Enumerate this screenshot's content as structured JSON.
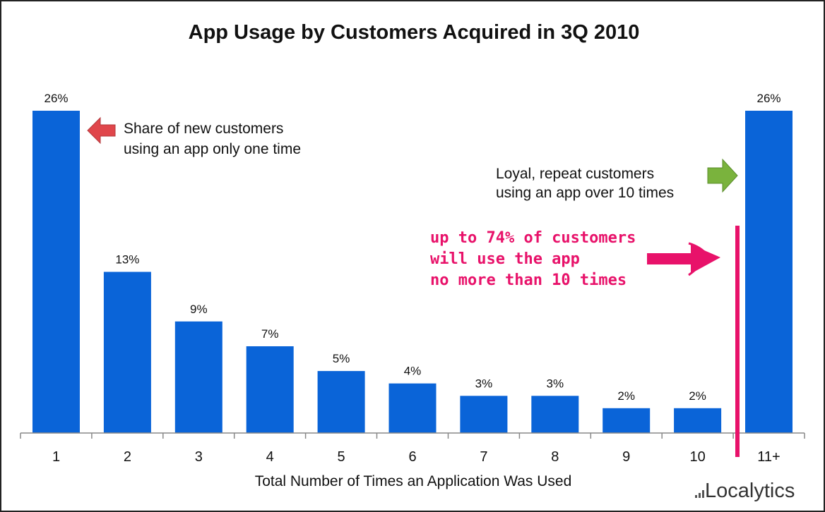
{
  "chart_data": {
    "type": "bar",
    "title": "App Usage by Customers Acquired in 3Q 2010",
    "xlabel": "Total Number of Times an Application Was Used",
    "ylabel": "",
    "categories": [
      "1",
      "2",
      "3",
      "4",
      "5",
      "6",
      "7",
      "8",
      "9",
      "10",
      "11+"
    ],
    "values": [
      26,
      13,
      9,
      7,
      5,
      4,
      3,
      3,
      2,
      2,
      26
    ],
    "value_labels": [
      "26%",
      "13%",
      "9%",
      "7%",
      "5%",
      "4%",
      "3%",
      "3%",
      "2%",
      "2%",
      "26%"
    ],
    "ylim": [
      0,
      26
    ],
    "grid": false,
    "bar_color": "#0a64d8",
    "annotations": [
      {
        "id": "one-time",
        "lines": [
          "Share of new customers",
          "using an app only one time"
        ],
        "arrow_color": "#e0464b"
      },
      {
        "id": "loyal",
        "lines": [
          "Loyal, repeat customers",
          "using an app over 10 times"
        ],
        "arrow_color": "#7ab33d"
      },
      {
        "id": "handwritten",
        "lines": [
          "up to 74% of customers",
          "will use the app",
          "no more than 10 times"
        ],
        "color": "#e8126a"
      }
    ]
  },
  "branding": {
    "logo_text": "Localytics"
  }
}
